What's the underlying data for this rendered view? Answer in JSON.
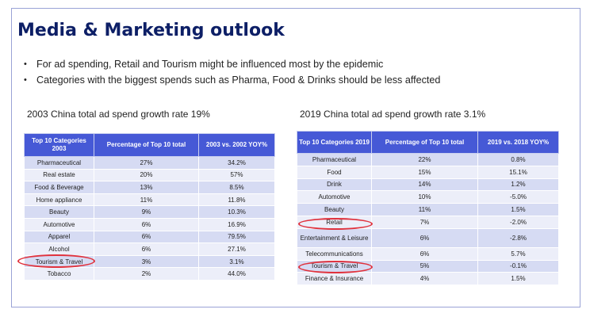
{
  "title": "Media & Marketing outlook",
  "bullets": [
    "For ad spending, Retail and Tourism might be influenced most by the epidemic",
    "Categories with the biggest spends such as Pharma, Food & Drinks should be less affected"
  ],
  "left_table": {
    "subtitle": "2003 China total ad spend growth rate 19%",
    "headers": [
      "Top 10 Categories 2003",
      "Percentage of  Top 10 total",
      "2003 vs. 2002 YOY%"
    ],
    "rows": [
      [
        "Pharmaceutical",
        "27%",
        "34.2%"
      ],
      [
        "Real estate",
        "20%",
        "57%"
      ],
      [
        "Food & Beverage",
        "13%",
        "8.5%"
      ],
      [
        "Home appliance",
        "11%",
        "11.8%"
      ],
      [
        "Beauty",
        "9%",
        "10.3%"
      ],
      [
        "Automotive",
        "6%",
        "16.9%"
      ],
      [
        "Apparel",
        "6%",
        "79.5%"
      ],
      [
        "Alcohol",
        "6%",
        "27.1%"
      ],
      [
        "Tourism & Travel",
        "3%",
        "3.1%"
      ],
      [
        "Tobacco",
        "2%",
        "44.0%"
      ]
    ]
  },
  "right_table": {
    "subtitle": "2019 China total ad spend growth rate 3.1%",
    "headers": [
      "Top 10 Categories 2019",
      "Percentage of Top 10 total",
      "2019 vs. 2018 YOY%"
    ],
    "rows": [
      [
        "Pharmaceutical",
        "22%",
        "0.8%"
      ],
      [
        "Food",
        "15%",
        "15.1%"
      ],
      [
        "Drink",
        "14%",
        "1.2%"
      ],
      [
        "Automotive",
        "10%",
        "-5.0%"
      ],
      [
        "Beauty",
        "11%",
        "1.5%"
      ],
      [
        "Retail",
        "7%",
        "-2.0%"
      ],
      [
        "Entertainment & Leisure",
        "6%",
        "-2.8%"
      ],
      [
        "Telecommunications",
        "6%",
        "5.7%"
      ],
      [
        "Tourism & Travel",
        "5%",
        "-0.1%"
      ],
      [
        "Finance & Insurance",
        "4%",
        "1.5%"
      ]
    ]
  },
  "colors": {
    "title": "#0d1f66",
    "header_bg": "#4659d6",
    "row_odd": "#d6dbf3",
    "row_even": "#eceef9",
    "highlight_ring": "#e0323d"
  }
}
